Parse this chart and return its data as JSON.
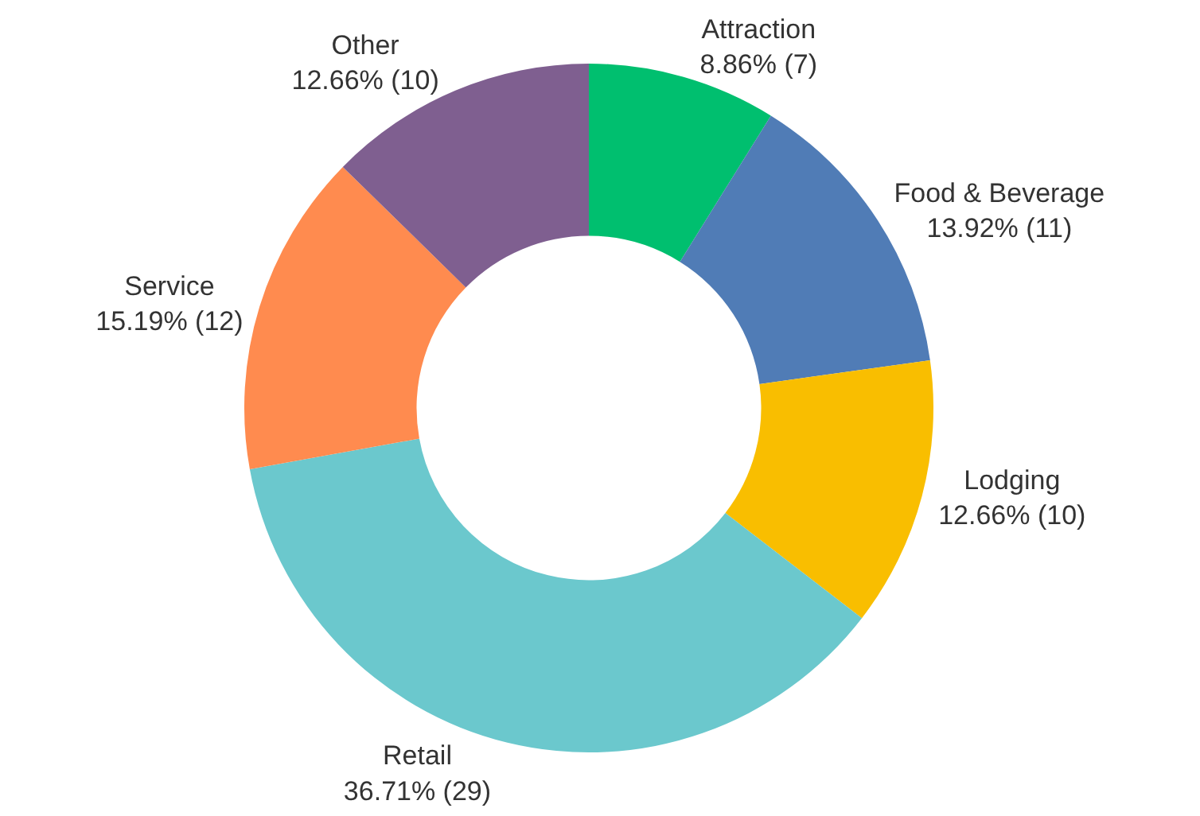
{
  "chart_data": {
    "type": "donut",
    "categories": [
      "Attraction",
      "Food & Beverage",
      "Lodging",
      "Retail",
      "Service",
      "Other"
    ],
    "values": [
      7,
      11,
      10,
      29,
      12,
      10
    ],
    "value_labels": [
      "8.86% (7)",
      "13.92% (11)",
      "12.66% (10)",
      "36.71% (29)",
      "15.19% (12)",
      "12.66% (10)"
    ],
    "colors": [
      "#00bf6f",
      "#507cb6",
      "#f9be00",
      "#6bc8cd",
      "#ff8b4f",
      "#7f5f90"
    ],
    "legend": false
  }
}
